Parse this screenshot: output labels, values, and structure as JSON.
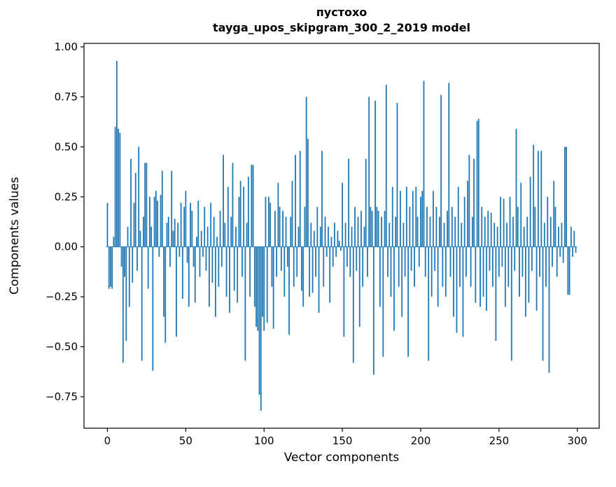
{
  "figure": {
    "background": "#ffffff"
  },
  "chart_data": {
    "type": "bar",
    "title": "пустохо",
    "subtitle": "tayga_upos_skipgram_300_2_2019 model",
    "xlabel": "Vector components",
    "ylabel": "Components values",
    "bar_color": "#1f77b4",
    "spine_color": "#000000",
    "grid": false,
    "legend": false,
    "x_start": 0,
    "xlim": [
      -14.95,
      313.95
    ],
    "ylim": [
      -0.9075,
      1.0175
    ],
    "xticks": [
      {
        "v": 0,
        "label": "0"
      },
      {
        "v": 50,
        "label": "50"
      },
      {
        "v": 100,
        "label": "100"
      },
      {
        "v": 150,
        "label": "150"
      },
      {
        "v": 200,
        "label": "200"
      },
      {
        "v": 250,
        "label": "250"
      },
      {
        "v": 300,
        "label": "300"
      }
    ],
    "yticks": [
      {
        "v": 1.0,
        "label": "1.00"
      },
      {
        "v": 0.75,
        "label": "0.75"
      },
      {
        "v": 0.5,
        "label": "0.50"
      },
      {
        "v": 0.25,
        "label": "0.25"
      },
      {
        "v": 0.0,
        "label": "0.00"
      },
      {
        "v": -0.25,
        "label": "−0.25"
      },
      {
        "v": -0.5,
        "label": "−0.50"
      },
      {
        "v": -0.75,
        "label": "−0.75"
      }
    ],
    "values": [
      0.22,
      -0.21,
      -0.2,
      -0.21,
      0.05,
      0.6,
      0.93,
      0.59,
      0.57,
      -0.1,
      -0.58,
      -0.15,
      -0.47,
      0.1,
      -0.3,
      0.44,
      -0.18,
      0.22,
      0.37,
      -0.12,
      0.5,
      0.08,
      -0.57,
      0.15,
      0.42,
      0.42,
      -0.21,
      0.25,
      0.1,
      -0.62,
      0.25,
      0.28,
      0.23,
      -0.05,
      0.26,
      0.38,
      -0.35,
      -0.48,
      0.12,
      0.15,
      -0.1,
      0.38,
      0.08,
      0.14,
      -0.45,
      0.12,
      -0.05,
      0.22,
      -0.26,
      0.2,
      0.28,
      -0.08,
      -0.3,
      0.22,
      0.18,
      -0.1,
      -0.28,
      0.05,
      0.23,
      -0.15,
      0.08,
      -0.05,
      0.2,
      -0.12,
      0.1,
      -0.3,
      0.22,
      -0.18,
      0.15,
      -0.35,
      0.05,
      -0.2,
      0.18,
      -0.1,
      0.46,
      0.12,
      -0.25,
      0.3,
      -0.33,
      0.15,
      0.42,
      -0.22,
      0.1,
      -0.28,
      0.25,
      0.33,
      -0.15,
      0.3,
      -0.57,
      0.12,
      0.35,
      -0.25,
      0.41,
      0.41,
      -0.3,
      -0.4,
      -0.42,
      -0.74,
      -0.82,
      -0.35,
      -0.42,
      0.25,
      -0.38,
      0.25,
      0.22,
      -0.2,
      -0.41,
      0.18,
      -0.15,
      0.32,
      0.2,
      -0.12,
      0.18,
      -0.25,
      0.15,
      -0.1,
      -0.44,
      0.15,
      0.33,
      -0.2,
      0.46,
      -0.15,
      0.1,
      0.48,
      -0.22,
      -0.3,
      0.2,
      0.75,
      0.54,
      -0.25,
      0.12,
      -0.23,
      0.08,
      -0.15,
      0.2,
      -0.33,
      0.1,
      0.48,
      -0.2,
      0.15,
      -0.05,
      0.1,
      -0.28,
      0.05,
      -0.1,
      0.12,
      -0.05,
      0.08,
      0.03,
      -0.02,
      0.32,
      -0.45,
      0.12,
      -0.1,
      0.44,
      -0.15,
      0.1,
      -0.58,
      0.2,
      -0.12,
      0.15,
      -0.4,
      0.18,
      -0.2,
      0.1,
      0.44,
      -0.15,
      0.75,
      0.2,
      0.18,
      -0.64,
      0.73,
      0.2,
      0.18,
      -0.3,
      0.15,
      -0.55,
      0.18,
      0.81,
      -0.15,
      0.12,
      -0.25,
      0.3,
      -0.42,
      0.15,
      0.72,
      -0.2,
      0.28,
      -0.35,
      0.12,
      -0.15,
      0.3,
      -0.55,
      0.2,
      -0.12,
      0.28,
      -0.2,
      0.3,
      0.15,
      -0.1,
      0.25,
      0.28,
      0.83,
      -0.15,
      0.2,
      -0.57,
      0.15,
      -0.25,
      0.28,
      -0.12,
      0.2,
      -0.3,
      0.15,
      0.76,
      -0.2,
      0.12,
      -0.25,
      0.18,
      0.82,
      -0.15,
      0.2,
      -0.35,
      0.15,
      -0.43,
      0.3,
      -0.2,
      0.12,
      -0.45,
      0.25,
      -0.15,
      0.33,
      0.46,
      -0.2,
      0.15,
      0.44,
      -0.28,
      0.63,
      0.64,
      -0.3,
      0.2,
      -0.25,
      0.15,
      -0.32,
      0.18,
      -0.12,
      0.17,
      -0.2,
      0.12,
      -0.47,
      0.1,
      -0.15,
      0.25,
      -0.1,
      0.24,
      -0.3,
      0.12,
      -0.2,
      0.25,
      -0.57,
      0.15,
      -0.12,
      0.59,
      0.2,
      -0.25,
      0.32,
      -0.15,
      0.1,
      -0.35,
      0.15,
      -0.28,
      0.35,
      -0.12,
      0.51,
      0.2,
      -0.32,
      0.48,
      -0.15,
      0.48,
      -0.57,
      0.12,
      -0.2,
      0.25,
      -0.63,
      0.15,
      -0.1,
      0.33,
      0.2,
      -0.15,
      0.1,
      -0.05,
      0.12,
      -0.08,
      0.5,
      0.5,
      -0.24,
      -0.24,
      0.1,
      -0.05,
      0.08,
      -0.03
    ]
  }
}
